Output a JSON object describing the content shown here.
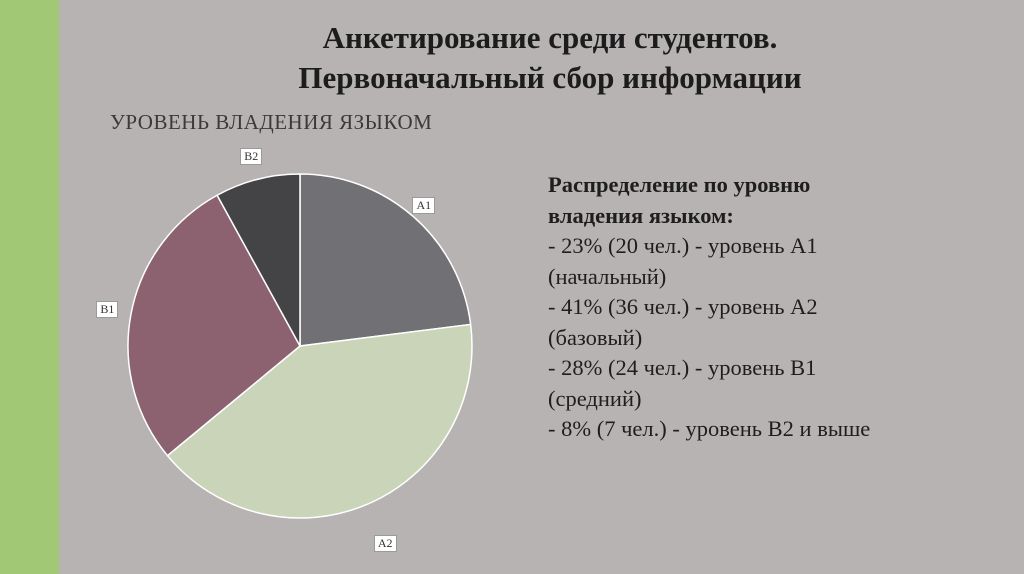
{
  "slide": {
    "title_lines": [
      "Анкетирование среди студентов.",
      "Первоначальный сбор информации"
    ]
  },
  "colors": {
    "background": "#b7b3b2",
    "accent_bar": "#a1c975"
  },
  "chart_data": {
    "type": "pie",
    "title": "УРОВЕНЬ ВЛАДЕНИЯ ЯЗЫКОМ",
    "categories": [
      "A1",
      "A2",
      "B1",
      "B2"
    ],
    "values": [
      23,
      41,
      28,
      8
    ],
    "colors": [
      "#707075",
      "#c9d4b9",
      "#8c6170",
      "#444346"
    ],
    "start": "12 o'clock, clockwise",
    "legend": "none (data labels next to slices)"
  },
  "info": {
    "heading_lines": [
      "Распределение по уровню",
      "владения языком:"
    ],
    "lines": [
      "- 23% (20 чел.) - уровень А1",
      "(начальный)",
      "- 41% (36 чел.) - уровень А2",
      "(базовый)",
      "- 28% (24 чел.) - уровень В1",
      "(средний)",
      "- 8% (7 чел.) - уровень В2 и выше"
    ]
  }
}
